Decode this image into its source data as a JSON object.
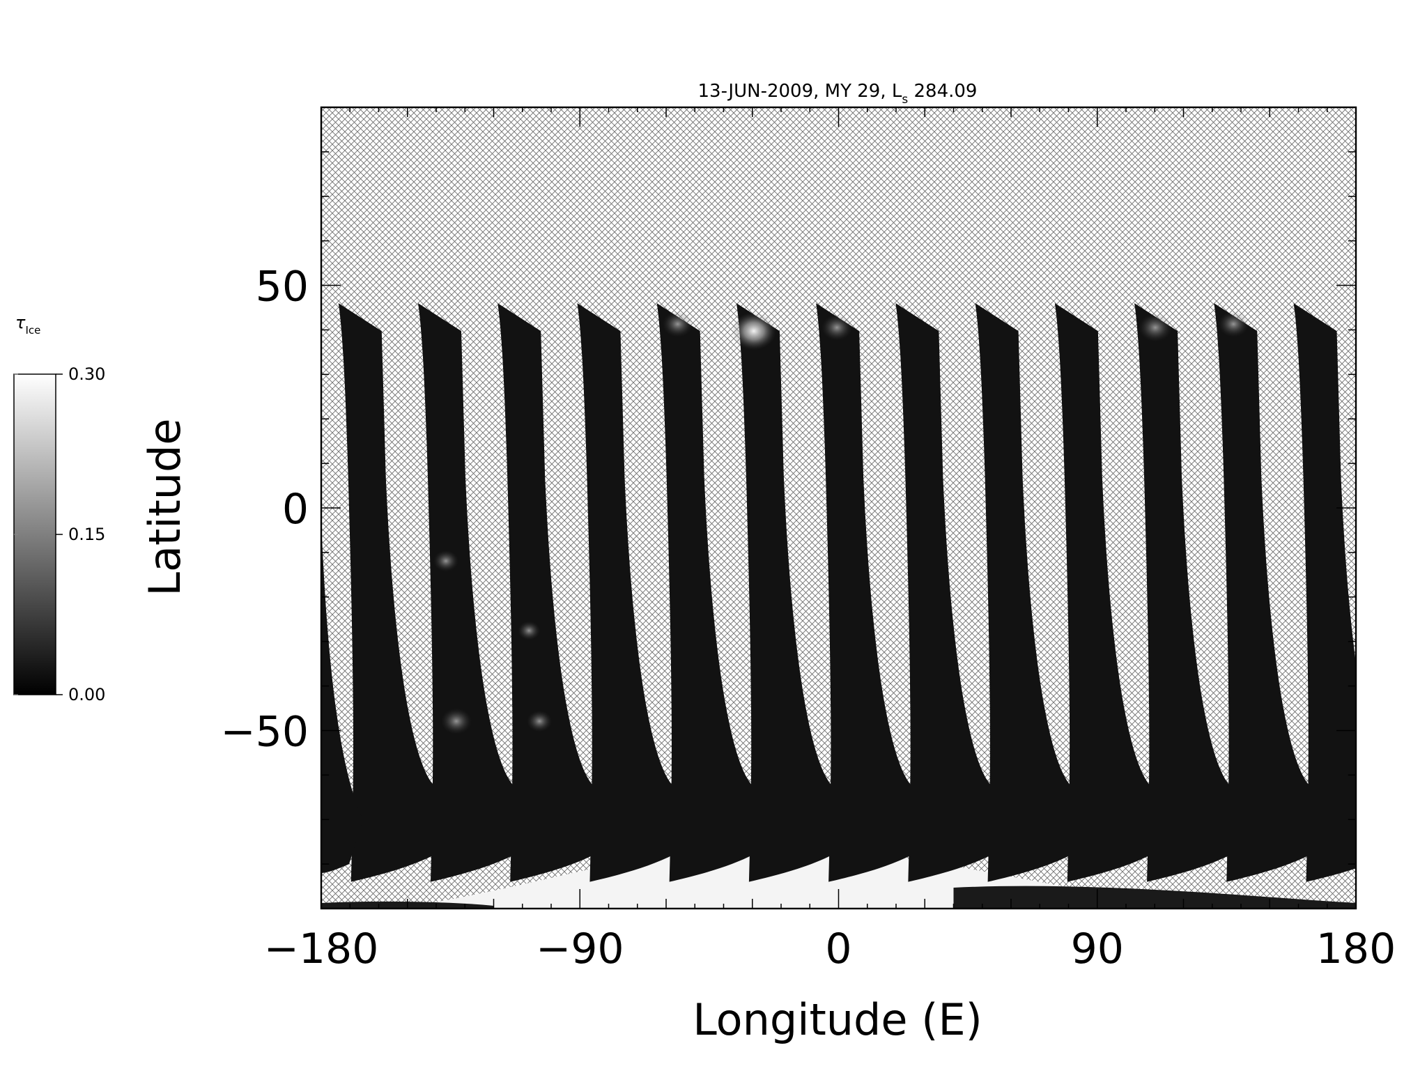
{
  "chart_data": {
    "type": "heatmap",
    "title": "13-JUN-2009, MY 29, ",
    "title_ls_main": "L",
    "title_ls_sub": "s",
    "title_ls_value": " 284.09",
    "xlabel": "Longitude (E)",
    "ylabel": "Latitude",
    "xlim": [
      -180,
      180
    ],
    "ylim": [
      -90,
      90
    ],
    "x_ticks": [
      -180,
      -90,
      0,
      90,
      180
    ],
    "x_tick_labels": [
      "−180",
      "−90",
      "0",
      "90",
      "180"
    ],
    "y_ticks": [
      -50,
      0,
      50
    ],
    "y_tick_labels": [
      "−50",
      "0",
      "50"
    ],
    "grid": false,
    "missing_data": "cross-hatched",
    "colorbar": {
      "label_main": "τ",
      "label_sub": "Ice",
      "min": 0.0,
      "max": 0.3,
      "tick_values": [
        0.0,
        0.15,
        0.3
      ],
      "tick_labels": [
        "0.00",
        "0.15",
        "0.30"
      ],
      "colormap": "grayscale",
      "low_color": "#000000",
      "high_color": "#ffffff"
    },
    "swaths": {
      "count": 13,
      "north_edge_lat": 46,
      "south_edge_lat": -84,
      "values": "mostly 0.00-0.03, brighter (up to ~0.30) near 30-45N and over the south polar cap"
    },
    "south_polar_cap": {
      "lon_range": [
        -120,
        60
      ],
      "lat_top": -76,
      "value": 0.3
    }
  }
}
